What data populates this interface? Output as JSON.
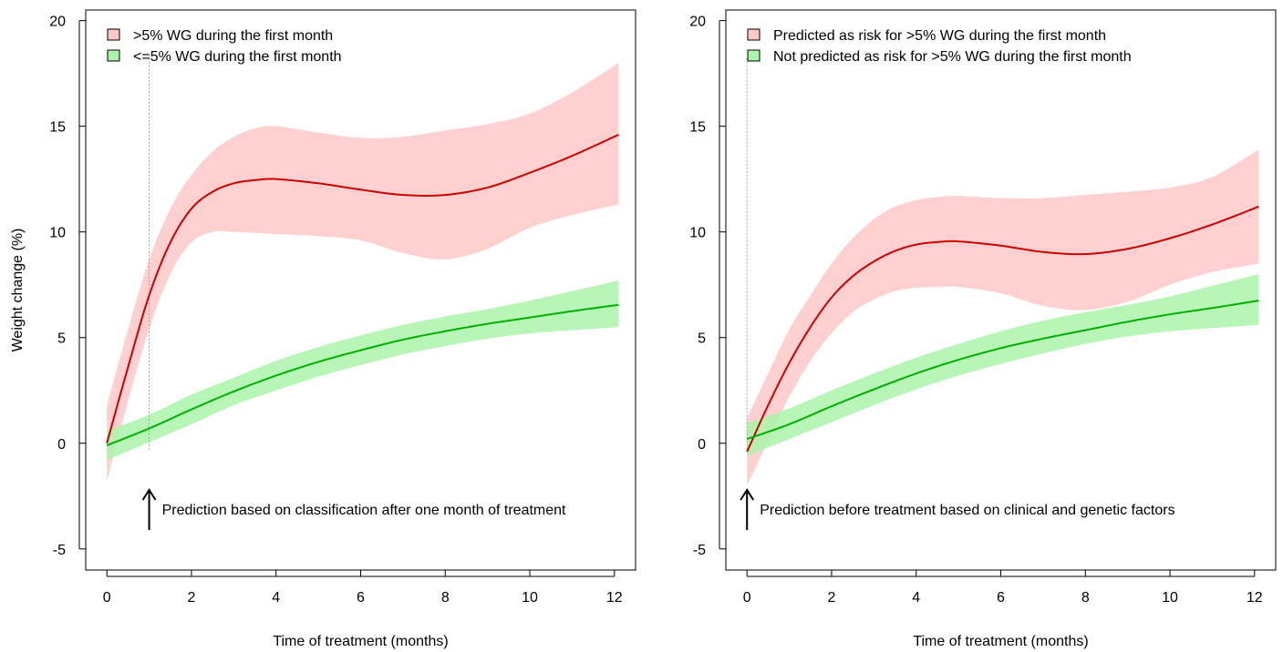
{
  "chart_data": [
    {
      "type": "line",
      "title": "",
      "xlabel": "Time of treatment (months)",
      "ylabel": "Weight change (%)",
      "xlim": [
        -0.5,
        12.5
      ],
      "ylim": [
        -6,
        20.5
      ],
      "xticks": [
        0,
        2,
        4,
        6,
        8,
        10,
        12
      ],
      "xticklabels": [
        "0",
        "2",
        "4",
        "6",
        "8",
        "10",
        "12"
      ],
      "yticks": [
        -5,
        0,
        5,
        10,
        15,
        20
      ],
      "yticklabels": [
        "-5",
        "0",
        "5",
        "10",
        "15",
        "20"
      ],
      "legend_position": "top-left",
      "grid": false,
      "reference_line_x": 1,
      "annotation": {
        "text": "Prediction based on classification after one month of treatment",
        "x": 1,
        "y": -3.5
      },
      "series": [
        {
          "name": ">5% WG during the first month",
          "line_color": "#cc0000",
          "band_color": "#ffc8c8",
          "x": [
            0,
            0.5,
            1,
            1.5,
            2,
            2.5,
            3,
            3.5,
            4,
            5,
            6,
            7,
            8,
            9,
            10,
            11,
            12.1
          ],
          "y": [
            0,
            3.6,
            7.0,
            9.5,
            11.1,
            11.9,
            12.3,
            12.45,
            12.5,
            12.3,
            12.0,
            11.75,
            11.75,
            12.1,
            12.8,
            13.6,
            14.6
          ],
          "lower": [
            -1.8,
            2.0,
            5.4,
            8.0,
            9.5,
            10.0,
            10.0,
            9.95,
            9.9,
            9.8,
            9.6,
            9.0,
            8.7,
            9.2,
            10.2,
            10.8,
            11.3
          ],
          "upper": [
            1.8,
            5.4,
            8.7,
            11.1,
            12.7,
            13.8,
            14.5,
            14.9,
            15.0,
            14.7,
            14.45,
            14.5,
            14.8,
            15.1,
            15.6,
            16.6,
            18.0
          ]
        },
        {
          "name": "<=5% WG during the first month",
          "line_color": "#00b000",
          "band_color": "#aaf5aa",
          "x": [
            0,
            1,
            2,
            3,
            4,
            5,
            6,
            7,
            8,
            9,
            10,
            11,
            12.1
          ],
          "y": [
            -0.1,
            0.7,
            1.6,
            2.45,
            3.2,
            3.85,
            4.4,
            4.9,
            5.3,
            5.65,
            5.95,
            6.25,
            6.55
          ],
          "lower": [
            -0.8,
            0.05,
            0.9,
            1.8,
            2.5,
            3.15,
            3.7,
            4.2,
            4.6,
            4.95,
            5.2,
            5.35,
            5.5
          ],
          "upper": [
            0.6,
            1.35,
            2.3,
            3.1,
            3.9,
            4.55,
            5.1,
            5.6,
            6.0,
            6.35,
            6.75,
            7.2,
            7.7
          ]
        }
      ]
    },
    {
      "type": "line",
      "title": "",
      "xlabel": "Time of treatment (months)",
      "ylabel": "",
      "xlim": [
        -0.5,
        12.5
      ],
      "ylim": [
        -6,
        20.5
      ],
      "xticks": [
        0,
        2,
        4,
        6,
        8,
        10,
        12
      ],
      "xticklabels": [
        "0",
        "2",
        "4",
        "6",
        "8",
        "10",
        "12"
      ],
      "yticks": [
        -5,
        0,
        5,
        10,
        15,
        20
      ],
      "yticklabels": [
        "-5",
        "0",
        "5",
        "10",
        "15",
        "20"
      ],
      "legend_position": "top-left",
      "grid": false,
      "reference_line_x": 0,
      "annotation": {
        "text": "Prediction before treatment based on clinical and genetic factors",
        "x": 0,
        "y": -3.5
      },
      "series": [
        {
          "name": "Predicted as risk for >5% WG during the first month",
          "line_color": "#cc0000",
          "band_color": "#ffc8c8",
          "x": [
            0,
            0.5,
            1,
            1.5,
            2,
            2.5,
            3,
            3.5,
            4,
            4.5,
            5,
            6,
            7,
            8,
            9,
            10,
            11,
            12.1
          ],
          "y": [
            -0.4,
            1.8,
            3.8,
            5.5,
            6.9,
            7.9,
            8.6,
            9.1,
            9.4,
            9.52,
            9.55,
            9.35,
            9.05,
            8.95,
            9.2,
            9.7,
            10.35,
            11.2
          ],
          "lower": [
            -2.0,
            0.1,
            2.2,
            3.9,
            5.2,
            6.2,
            6.8,
            7.2,
            7.35,
            7.4,
            7.4,
            7.1,
            6.5,
            6.3,
            6.7,
            7.5,
            8.1,
            8.5
          ],
          "upper": [
            1.2,
            3.3,
            5.4,
            7.0,
            8.5,
            9.7,
            10.6,
            11.2,
            11.5,
            11.65,
            11.7,
            11.6,
            11.6,
            11.75,
            11.9,
            12.1,
            12.6,
            13.9
          ]
        },
        {
          "name": "Not predicted as risk for >5% WG during the first month",
          "line_color": "#00b000",
          "band_color": "#aaf5aa",
          "x": [
            0,
            1,
            2,
            3,
            4,
            5,
            6,
            7,
            8,
            9,
            10,
            11,
            12.1
          ],
          "y": [
            0.2,
            0.9,
            1.75,
            2.55,
            3.3,
            3.95,
            4.5,
            4.95,
            5.35,
            5.75,
            6.1,
            6.4,
            6.75
          ],
          "lower": [
            -0.6,
            0.2,
            1.0,
            1.8,
            2.55,
            3.2,
            3.75,
            4.25,
            4.7,
            5.05,
            5.3,
            5.45,
            5.6
          ],
          "upper": [
            0.95,
            1.65,
            2.5,
            3.3,
            4.05,
            4.7,
            5.3,
            5.8,
            6.2,
            6.55,
            6.95,
            7.45,
            8.0
          ]
        }
      ]
    }
  ]
}
